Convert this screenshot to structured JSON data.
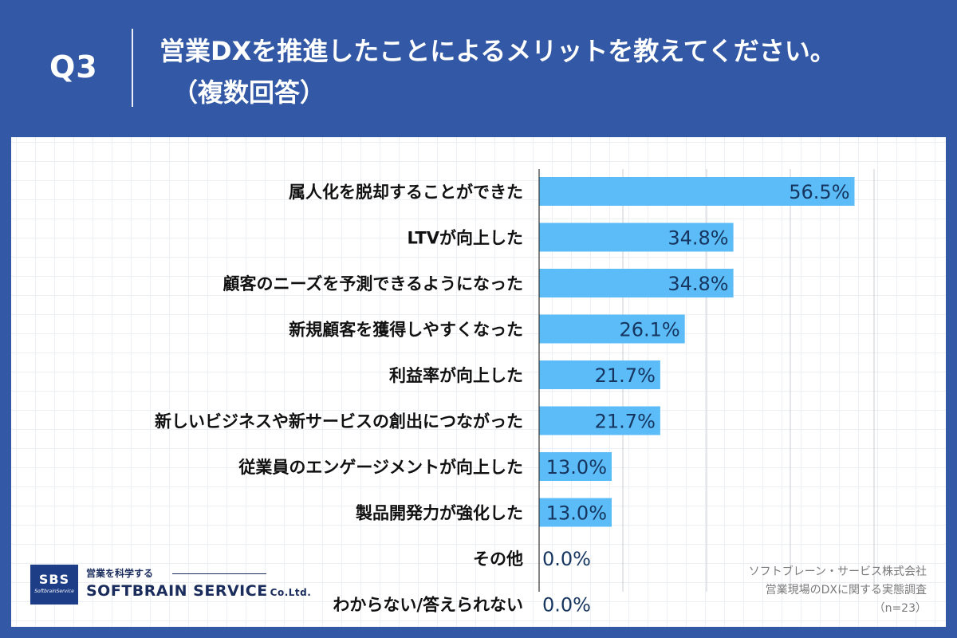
{
  "header": {
    "question": "Q3",
    "title_line1": "営業DXを推進したことによるメリットを教えてください。",
    "title_line2": "（複数回答）"
  },
  "chart_data": {
    "type": "bar",
    "orientation": "horizontal",
    "categories": [
      "属人化を脱却することができた",
      "LTVが向上した",
      "顧客のニーズを予測できるようになった",
      "新規顧客を獲得しやすくなった",
      "利益率が向上した",
      "新しいビジネスや新サービスの創出につながった",
      "従業員のエンゲージメントが向上した",
      "製品開発力が強化した",
      "その他",
      "わからない/答えられない"
    ],
    "values": [
      56.5,
      34.8,
      34.8,
      26.1,
      21.7,
      21.7,
      13.0,
      13.0,
      0.0,
      0.0
    ],
    "value_labels": [
      "56.5%",
      "34.8%",
      "34.8%",
      "26.1%",
      "21.7%",
      "21.7%",
      "13.0%",
      "13.0%",
      "0.0%",
      "0.0%"
    ],
    "xlim": [
      0,
      60
    ],
    "grid": true,
    "bar_color": "#5bbcf8"
  },
  "logo": {
    "abbr": "SBS",
    "tiny": "SoftbrainService",
    "tagline": "営業を科学する",
    "name": "SOFTBRAIN SERVICE",
    "suffix": "Co.Ltd."
  },
  "source": {
    "line1": "ソフトブレーン・サービス株式会社",
    "line2": "営業現場のDXに関する実態調査",
    "line3": "（n=23）"
  }
}
